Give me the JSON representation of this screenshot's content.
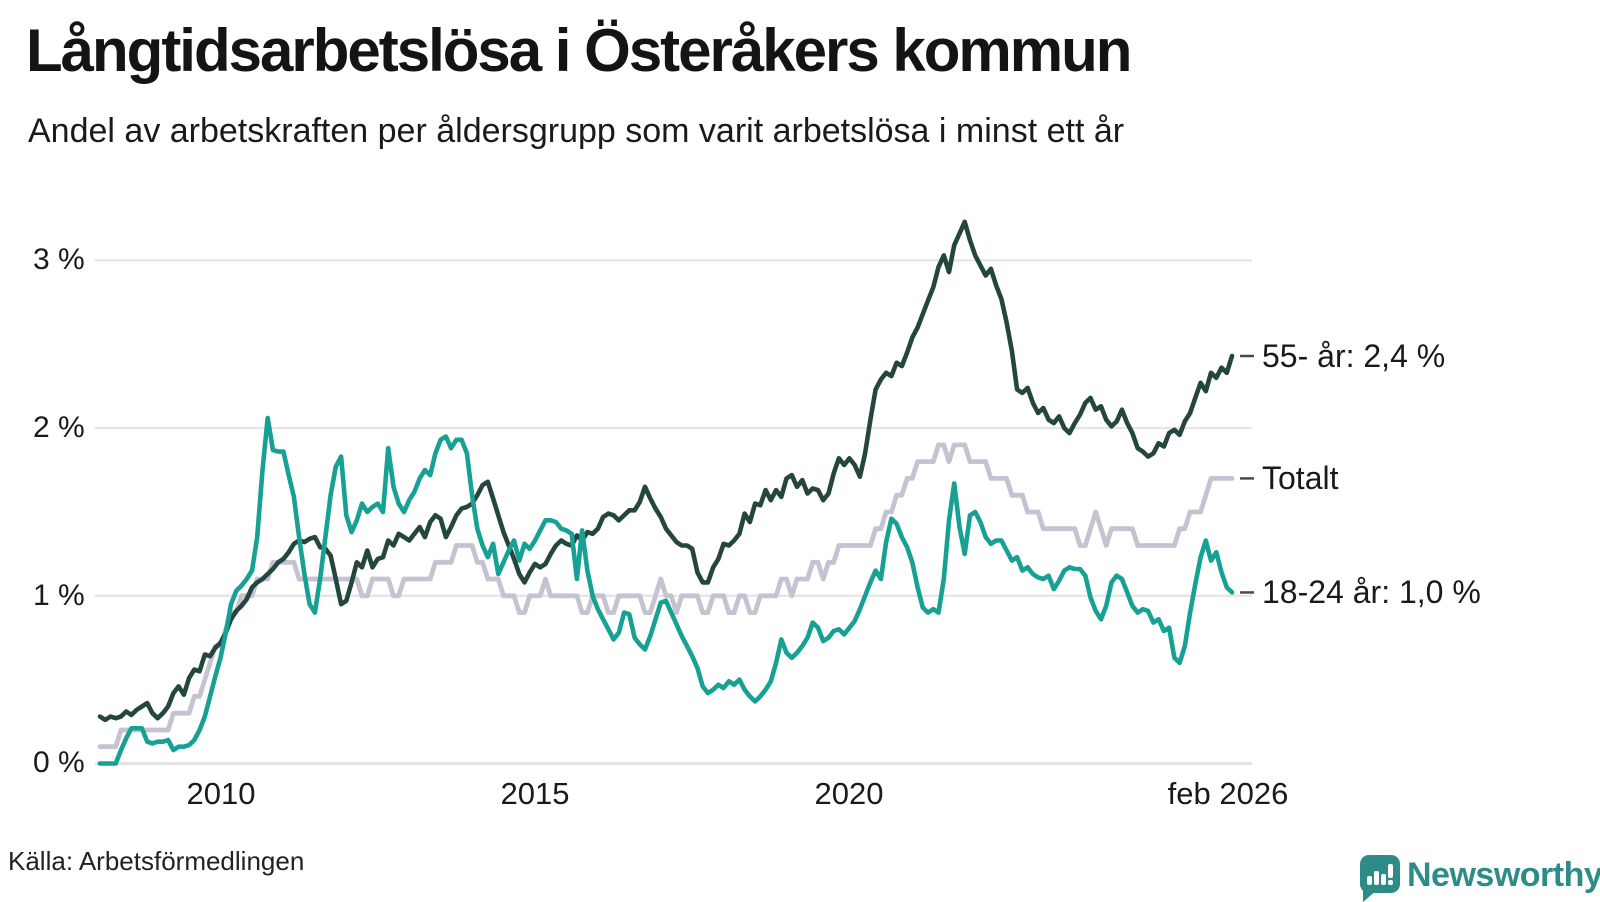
{
  "header": {
    "title": "Långtidsarbetslösa i Österåkers kommun",
    "subtitle": "Andel av arbetskraften per åldersgrupp som varit arbetslösa i minst ett år"
  },
  "source": {
    "label": "Källa: Arbetsförmedlingen"
  },
  "branding": {
    "wordmark": "Newsworthy",
    "logo_color": "#2e8c88"
  },
  "chart_data": {
    "type": "line",
    "title": "Långtidsarbetslösa i Österåkers kommun",
    "subtitle": "Andel av arbetskraften per åldersgrupp som varit arbetslösa i minst ett år",
    "xlabel": "",
    "ylabel": "",
    "ylim": [
      0,
      3.35
    ],
    "grid": true,
    "legend_position": "end-of-line",
    "frequency": "monthly",
    "x_start": "2008-02",
    "x_end": "2026-02",
    "points_per_series": 217,
    "y_ticks": [
      {
        "label": "3 %",
        "value": 3
      },
      {
        "label": "2 %",
        "value": 2
      },
      {
        "label": "1 %",
        "value": 1
      },
      {
        "label": "0 %",
        "value": 0
      }
    ],
    "x_ticks": [
      {
        "label": "2010",
        "month_index": 23
      },
      {
        "label": "2015",
        "month_index": 83
      },
      {
        "label": "2020",
        "month_index": 143
      },
      {
        "label": "feb 2026",
        "month_index": 216
      }
    ],
    "series": [
      {
        "id": "totalt",
        "name": "Totalt",
        "end_label": "Totalt",
        "end_value": 1.7,
        "color": "#c5c2d2",
        "values": [
          0.1,
          0.1,
          0.1,
          0.1,
          0.2,
          0.2,
          0.2,
          0.2,
          0.2,
          0.2,
          0.2,
          0.2,
          0.2,
          0.2,
          0.3,
          0.3,
          0.3,
          0.3,
          0.4,
          0.4,
          0.5,
          0.6,
          0.7,
          0.7,
          0.8,
          0.9,
          0.9,
          1.0,
          1.0,
          1.0,
          1.1,
          1.1,
          1.1,
          1.2,
          1.2,
          1.2,
          1.2,
          1.2,
          1.1,
          1.1,
          1.1,
          1.1,
          1.1,
          1.1,
          1.1,
          1.1,
          1.1,
          1.1,
          1.1,
          1.1,
          1.0,
          1.0,
          1.1,
          1.1,
          1.1,
          1.1,
          1.0,
          1.0,
          1.1,
          1.1,
          1.1,
          1.1,
          1.1,
          1.1,
          1.2,
          1.2,
          1.2,
          1.2,
          1.3,
          1.3,
          1.3,
          1.3,
          1.2,
          1.2,
          1.1,
          1.1,
          1.1,
          1.0,
          1.0,
          1.0,
          0.9,
          0.9,
          1.0,
          1.0,
          1.0,
          1.1,
          1.0,
          1.0,
          1.0,
          1.0,
          1.0,
          1.0,
          0.9,
          0.9,
          1.0,
          1.0,
          1.0,
          0.9,
          0.9,
          1.0,
          1.0,
          1.0,
          1.0,
          1.0,
          0.9,
          0.9,
          1.0,
          1.1,
          1.0,
          1.0,
          0.9,
          1.0,
          1.0,
          1.0,
          1.0,
          0.9,
          0.9,
          1.0,
          1.0,
          1.0,
          0.9,
          0.9,
          1.0,
          1.0,
          0.9,
          0.9,
          1.0,
          1.0,
          1.0,
          1.0,
          1.1,
          1.1,
          1.0,
          1.1,
          1.1,
          1.1,
          1.2,
          1.2,
          1.1,
          1.2,
          1.2,
          1.3,
          1.3,
          1.3,
          1.3,
          1.3,
          1.3,
          1.3,
          1.4,
          1.4,
          1.5,
          1.5,
          1.6,
          1.6,
          1.7,
          1.7,
          1.8,
          1.8,
          1.8,
          1.8,
          1.9,
          1.9,
          1.8,
          1.9,
          1.9,
          1.9,
          1.8,
          1.8,
          1.8,
          1.8,
          1.7,
          1.7,
          1.7,
          1.7,
          1.6,
          1.6,
          1.6,
          1.5,
          1.5,
          1.5,
          1.4,
          1.4,
          1.4,
          1.4,
          1.4,
          1.4,
          1.4,
          1.3,
          1.3,
          1.4,
          1.5,
          1.4,
          1.3,
          1.4,
          1.4,
          1.4,
          1.4,
          1.4,
          1.3,
          1.3,
          1.3,
          1.3,
          1.3,
          1.3,
          1.3,
          1.3,
          1.4,
          1.4,
          1.5,
          1.5,
          1.5,
          1.6,
          1.7,
          1.7,
          1.7,
          1.7,
          1.7
        ]
      },
      {
        "id": "55plus",
        "name": "55- år",
        "end_label": "55- år: 2,4 %",
        "end_value": 2.4,
        "color": "#25463f",
        "values": [
          0.28,
          0.26,
          0.28,
          0.27,
          0.28,
          0.31,
          0.29,
          0.32,
          0.34,
          0.36,
          0.3,
          0.27,
          0.3,
          0.34,
          0.42,
          0.46,
          0.41,
          0.51,
          0.56,
          0.55,
          0.65,
          0.64,
          0.69,
          0.72,
          0.78,
          0.86,
          0.91,
          0.94,
          0.98,
          1.05,
          1.08,
          1.1,
          1.13,
          1.16,
          1.2,
          1.22,
          1.26,
          1.31,
          1.33,
          1.32,
          1.34,
          1.35,
          1.29,
          1.28,
          1.24,
          1.1,
          0.95,
          0.97,
          1.08,
          1.2,
          1.17,
          1.27,
          1.17,
          1.22,
          1.23,
          1.33,
          1.3,
          1.37,
          1.35,
          1.33,
          1.37,
          1.41,
          1.35,
          1.44,
          1.48,
          1.46,
          1.35,
          1.41,
          1.48,
          1.52,
          1.53,
          1.55,
          1.6,
          1.66,
          1.68,
          1.58,
          1.48,
          1.38,
          1.3,
          1.22,
          1.13,
          1.08,
          1.14,
          1.19,
          1.17,
          1.19,
          1.25,
          1.3,
          1.33,
          1.31,
          1.3,
          1.36,
          1.33,
          1.38,
          1.37,
          1.4,
          1.47,
          1.49,
          1.48,
          1.45,
          1.48,
          1.51,
          1.51,
          1.56,
          1.65,
          1.58,
          1.52,
          1.47,
          1.4,
          1.36,
          1.32,
          1.3,
          1.3,
          1.28,
          1.14,
          1.08,
          1.08,
          1.17,
          1.22,
          1.31,
          1.3,
          1.33,
          1.37,
          1.49,
          1.44,
          1.55,
          1.54,
          1.63,
          1.57,
          1.63,
          1.59,
          1.7,
          1.72,
          1.65,
          1.69,
          1.61,
          1.64,
          1.63,
          1.57,
          1.61,
          1.73,
          1.82,
          1.78,
          1.82,
          1.78,
          1.71,
          1.85,
          2.05,
          2.23,
          2.29,
          2.33,
          2.31,
          2.39,
          2.37,
          2.45,
          2.54,
          2.6,
          2.68,
          2.76,
          2.84,
          2.96,
          3.03,
          2.93,
          3.09,
          3.16,
          3.23,
          3.12,
          3.03,
          2.97,
          2.91,
          2.95,
          2.85,
          2.77,
          2.63,
          2.46,
          2.23,
          2.21,
          2.24,
          2.15,
          2.09,
          2.12,
          2.05,
          2.03,
          2.07,
          2.0,
          1.97,
          2.03,
          2.08,
          2.15,
          2.18,
          2.11,
          2.13,
          2.05,
          2.01,
          2.04,
          2.11,
          2.03,
          1.97,
          1.88,
          1.86,
          1.83,
          1.85,
          1.91,
          1.89,
          1.97,
          1.99,
          1.96,
          2.04,
          2.09,
          2.18,
          2.27,
          2.22,
          2.33,
          2.3,
          2.36,
          2.33,
          2.43
        ]
      },
      {
        "id": "18-24",
        "name": "18-24 år",
        "end_label": "18-24 år: 1,0 %",
        "end_value": 1.0,
        "color": "#17a194",
        "values": [
          0.0,
          0.0,
          0.0,
          0.0,
          0.08,
          0.15,
          0.21,
          0.21,
          0.21,
          0.13,
          0.12,
          0.13,
          0.13,
          0.14,
          0.08,
          0.1,
          0.1,
          0.11,
          0.14,
          0.2,
          0.28,
          0.4,
          0.52,
          0.63,
          0.78,
          0.95,
          1.03,
          1.06,
          1.1,
          1.15,
          1.35,
          1.75,
          2.06,
          1.87,
          1.86,
          1.86,
          1.72,
          1.59,
          1.35,
          1.13,
          0.95,
          0.9,
          1.1,
          1.35,
          1.6,
          1.77,
          1.83,
          1.48,
          1.38,
          1.45,
          1.55,
          1.5,
          1.53,
          1.55,
          1.5,
          1.88,
          1.65,
          1.55,
          1.5,
          1.57,
          1.62,
          1.7,
          1.75,
          1.72,
          1.85,
          1.93,
          1.95,
          1.88,
          1.93,
          1.93,
          1.85,
          1.6,
          1.4,
          1.3,
          1.23,
          1.31,
          1.13,
          1.2,
          1.27,
          1.33,
          1.21,
          1.31,
          1.28,
          1.33,
          1.39,
          1.45,
          1.45,
          1.44,
          1.4,
          1.39,
          1.37,
          1.1,
          1.39,
          1.15,
          1.0,
          0.92,
          0.86,
          0.8,
          0.74,
          0.78,
          0.9,
          0.89,
          0.75,
          0.71,
          0.68,
          0.76,
          0.86,
          0.96,
          0.97,
          0.9,
          0.83,
          0.76,
          0.7,
          0.64,
          0.57,
          0.46,
          0.42,
          0.44,
          0.47,
          0.45,
          0.49,
          0.47,
          0.5,
          0.44,
          0.4,
          0.37,
          0.4,
          0.44,
          0.49,
          0.6,
          0.74,
          0.66,
          0.63,
          0.66,
          0.7,
          0.75,
          0.84,
          0.81,
          0.73,
          0.75,
          0.79,
          0.8,
          0.77,
          0.81,
          0.85,
          0.92,
          1.0,
          1.08,
          1.15,
          1.1,
          1.32,
          1.46,
          1.43,
          1.35,
          1.29,
          1.2,
          1.05,
          0.93,
          0.9,
          0.92,
          0.9,
          1.1,
          1.45,
          1.67,
          1.41,
          1.25,
          1.48,
          1.5,
          1.44,
          1.35,
          1.31,
          1.33,
          1.33,
          1.27,
          1.21,
          1.23,
          1.15,
          1.17,
          1.13,
          1.11,
          1.1,
          1.12,
          1.04,
          1.09,
          1.15,
          1.17,
          1.16,
          1.16,
          1.12,
          0.99,
          0.91,
          0.86,
          0.94,
          1.08,
          1.12,
          1.1,
          1.02,
          0.94,
          0.9,
          0.92,
          0.91,
          0.84,
          0.86,
          0.79,
          0.81,
          0.63,
          0.6,
          0.7,
          0.9,
          1.07,
          1.23,
          1.33,
          1.21,
          1.26,
          1.14,
          1.05,
          1.02
        ]
      }
    ]
  }
}
